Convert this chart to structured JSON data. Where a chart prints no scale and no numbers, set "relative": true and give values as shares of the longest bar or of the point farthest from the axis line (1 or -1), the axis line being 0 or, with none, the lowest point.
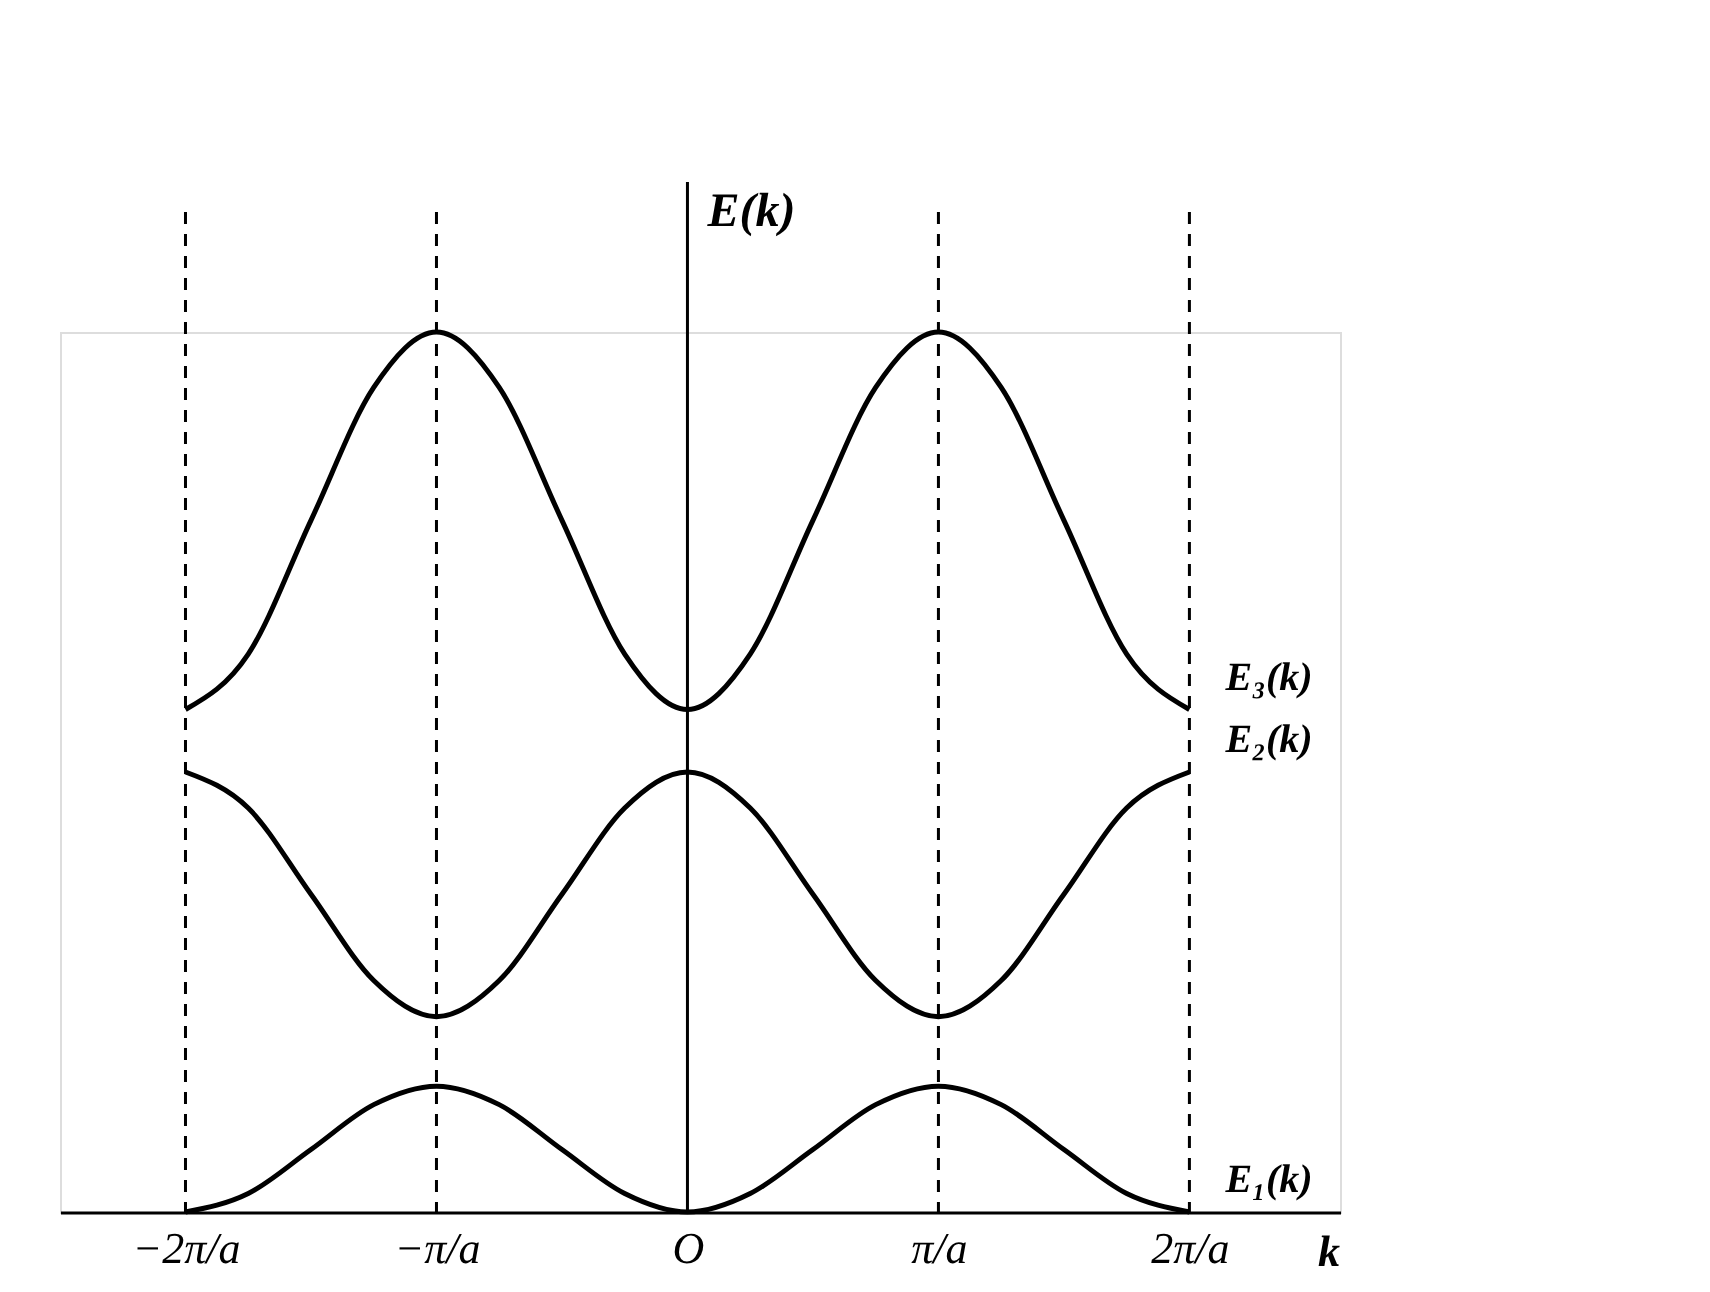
{
  "chart_data": {
    "type": "line",
    "relative": true,
    "ylabel": "E(k)",
    "xlabel": "k",
    "x": [
      -2,
      -1.75,
      -1.5,
      -1.25,
      -1,
      -0.75,
      -0.5,
      -0.25,
      0,
      0.25,
      0.5,
      0.75,
      1,
      1.25,
      1.5,
      1.75,
      2
    ],
    "xlim": [
      -2.5,
      2.6
    ],
    "xticks": [
      {
        "value": -2,
        "label": "−2π/a"
      },
      {
        "value": -1,
        "label": "−π/a"
      },
      {
        "value": 0,
        "label": "O"
      },
      {
        "value": 1,
        "label": "π/a"
      },
      {
        "value": 2,
        "label": "2π/a"
      }
    ],
    "series": [
      {
        "name": "E₁(k)",
        "color": "#000000",
        "values": [
          0,
          0.021,
          0.071,
          0.122,
          0.143,
          0.122,
          0.071,
          0.021,
          0,
          0.021,
          0.071,
          0.122,
          0.143,
          0.122,
          0.071,
          0.021,
          0
        ]
      },
      {
        "name": "E₂(k)",
        "color": "#000000",
        "values": [
          0.5,
          0.459,
          0.361,
          0.263,
          0.222,
          0.263,
          0.361,
          0.459,
          0.5,
          0.459,
          0.361,
          0.263,
          0.222,
          0.263,
          0.361,
          0.459,
          0.5
        ]
      },
      {
        "name": "E₃(k)",
        "color": "#000000",
        "values": [
          0.571,
          0.634,
          0.786,
          0.937,
          1,
          0.937,
          0.786,
          0.634,
          0.571,
          0.634,
          0.786,
          0.937,
          1,
          0.937,
          0.786,
          0.634,
          0.571
        ]
      }
    ],
    "ref_lines": [
      {
        "axis": "x",
        "value": -2,
        "color": "#000000",
        "line_style": "dashed"
      },
      {
        "axis": "x",
        "value": -1,
        "color": "#000000",
        "line_style": "dashed"
      },
      {
        "axis": "x",
        "value": 1,
        "color": "#000000",
        "line_style": "dashed"
      },
      {
        "axis": "x",
        "value": 2,
        "color": "#000000",
        "line_style": "dashed"
      }
    ],
    "legend": false,
    "grid": false,
    "marker": "none",
    "line_style": "solid"
  }
}
